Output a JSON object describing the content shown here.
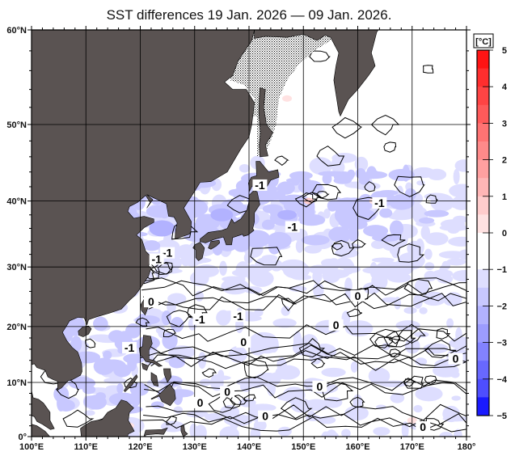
{
  "title": "SST differences 19 Jan. 2026 — 09 Jan. 2026.",
  "axes": {
    "lat_labels": [
      "60°N",
      "50°N",
      "40°N",
      "30°N",
      "20°N",
      "10°N",
      "0°"
    ],
    "lat_values": [
      60,
      50,
      40,
      30,
      20,
      10,
      0
    ],
    "lon_labels": [
      "100°E",
      "110°E",
      "120°E",
      "130°E",
      "140°E",
      "150°E",
      "160°E",
      "170°E",
      "180°"
    ],
    "lon_values": [
      100,
      110,
      120,
      130,
      140,
      150,
      160,
      170,
      180
    ],
    "lon_range": [
      100,
      180
    ],
    "lat_range": [
      0,
      60
    ],
    "projection": "mercator",
    "grid": true
  },
  "colorbar": {
    "unit": "[°C]",
    "range": [
      -5,
      5
    ],
    "tick_labels": [
      "5",
      "4",
      "3",
      "2",
      "1",
      "0",
      "−1",
      "−2",
      "−3",
      "−4",
      "−5"
    ],
    "colors": [
      "#ff1414",
      "#ff2e2e",
      "#ff4444",
      "#ff5a5a",
      "#ff7373",
      "#ff8a8a",
      "#ffa0a0",
      "#ffb6b6",
      "#ffcccc",
      "#ffe2e2",
      "#ffffff",
      "#ffffff",
      "#dedeff",
      "#c8c8ff",
      "#b2b2ff",
      "#9c9cff",
      "#8282ff",
      "#6868ff",
      "#4e4eff",
      "#1a1aff"
    ]
  },
  "colors": {
    "land": "#5a5352",
    "sea_ice": "#ffffff",
    "ocean_no_change": "#ffffff",
    "grid": "#000000"
  },
  "contour_labels": [
    "-1",
    "-1",
    "-1",
    "-1",
    "-1",
    "-1",
    "-1",
    "-1",
    "0",
    "0",
    "0",
    "0",
    "0",
    "0",
    "0",
    "0",
    "0",
    "0"
  ]
}
